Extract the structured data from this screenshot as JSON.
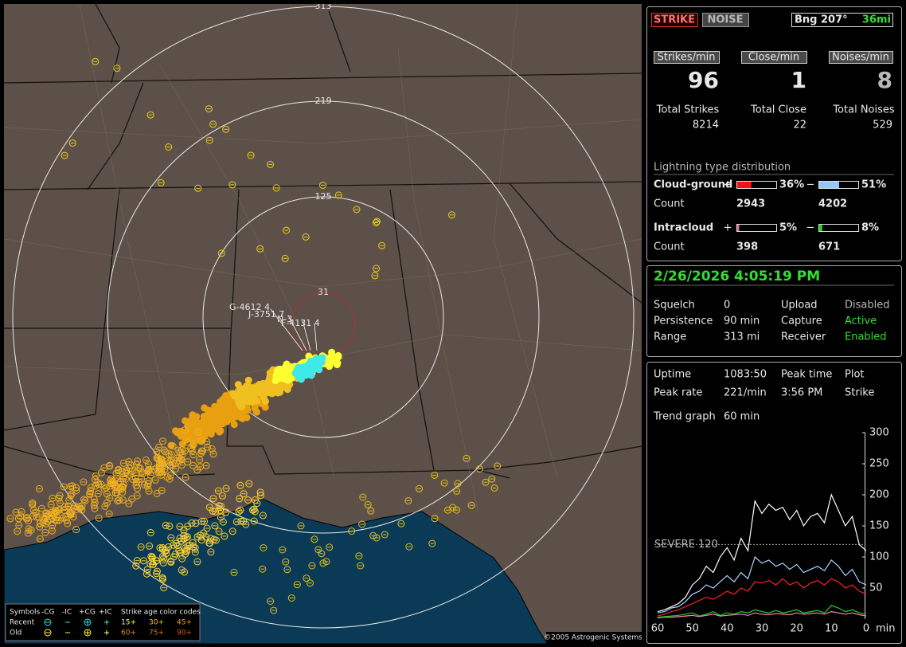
{
  "map": {
    "range_rings": [
      "313",
      "219",
      "125",
      "31"
    ],
    "strike_labels": [
      "G-4612 4",
      "J-3751 7",
      "N-3",
      "F-4131 4"
    ],
    "legend": {
      "symbols": "Symbols",
      "neg_cg": "-CG",
      "neg_ic": "-IC",
      "pos_cg": "+CG",
      "pos_ic": "+IC",
      "age_title": "Strike age color codes",
      "recent": "Recent",
      "old": "Old",
      "ages_recent": [
        "15+",
        "30+",
        "45+"
      ],
      "ages_old": [
        "60+",
        "75+",
        "90+"
      ]
    },
    "copyright": "©2005 Astrogenic Systems"
  },
  "header": {
    "strike_button": "STRIKE",
    "noise_button": "NOISE",
    "bearing": "Bng 207°",
    "distance": "36mi"
  },
  "rates": {
    "labels": [
      "Strikes/min",
      "Close/min",
      "Noises/min"
    ],
    "values": [
      96,
      1,
      8
    ],
    "total_labels": [
      "Total Strikes",
      "Total Close",
      "Total Noises"
    ],
    "totals": [
      8214,
      22,
      529
    ]
  },
  "distribution": {
    "title": "Lightning type distribution",
    "plus": "+",
    "minus": "−",
    "count_label": "Count",
    "rows": [
      {
        "name": "Cloud-ground",
        "pos": {
          "value": 36,
          "label": "36%"
        },
        "neg": {
          "value": 51,
          "label": "51%"
        },
        "pos_count": 2943,
        "neg_count": 4202
      },
      {
        "name": "Intracloud",
        "pos": {
          "value": 5,
          "label": "5%"
        },
        "neg": {
          "value": 8,
          "label": "8%"
        },
        "pos_count": 398,
        "neg_count": 671
      }
    ]
  },
  "status": {
    "datetime": "2/26/2026 4:05:19 PM",
    "rows": [
      [
        "Squelch",
        "0",
        "Upload",
        "Disabled"
      ],
      [
        "Persistence",
        "90 min",
        "Capture",
        "Active"
      ],
      [
        "Range",
        "313 mi",
        "Receiver",
        "Enabled"
      ]
    ]
  },
  "info": {
    "rows": [
      [
        "Uptime",
        "1083:50",
        "Peak time",
        "3:56 PM",
        "Plot"
      ],
      [
        "Peak rate",
        "221/min",
        "",
        "",
        "Strike"
      ]
    ],
    "trend_label": "Trend graph",
    "trend_window": "60 min"
  },
  "trend_graph": {
    "type": "line",
    "x": [
      60,
      58,
      56,
      54,
      52,
      50,
      48,
      46,
      44,
      42,
      40,
      38,
      36,
      34,
      32,
      30,
      28,
      26,
      24,
      22,
      20,
      18,
      16,
      14,
      12,
      10,
      8,
      6,
      4,
      2,
      0
    ],
    "xlim": [
      60,
      0
    ],
    "xticks": [
      60,
      50,
      40,
      30,
      20,
      10,
      0
    ],
    "x_unit": "min",
    "ylim": [
      0,
      300
    ],
    "yticks": [
      50,
      100,
      150,
      200,
      250,
      300
    ],
    "severe": {
      "value": 120,
      "label": "SEVERE 120"
    },
    "series": [
      {
        "color": "#ff80c0",
        "values": [
          2,
          3,
          3,
          4,
          5,
          6,
          4,
          6,
          8,
          5,
          6,
          7,
          8,
          6,
          10,
          8,
          7,
          9,
          8,
          7,
          10,
          8,
          9,
          10,
          8,
          12,
          10,
          8,
          10,
          7,
          5
        ]
      },
      {
        "color": "#20d020",
        "values": [
          3,
          4,
          5,
          6,
          8,
          10,
          5,
          8,
          12,
          6,
          10,
          8,
          12,
          10,
          15,
          12,
          10,
          14,
          10,
          12,
          15,
          10,
          12,
          14,
          10,
          22,
          18,
          12,
          15,
          10,
          8
        ]
      },
      {
        "color": "#ff2020",
        "values": [
          5,
          8,
          12,
          15,
          20,
          25,
          30,
          35,
          32,
          38,
          45,
          40,
          50,
          45,
          60,
          58,
          62,
          55,
          65,
          55,
          60,
          50,
          58,
          62,
          55,
          65,
          60,
          50,
          55,
          45,
          40
        ]
      },
      {
        "color": "#a8d4ff",
        "values": [
          10,
          12,
          18,
          20,
          28,
          40,
          45,
          55,
          50,
          60,
          70,
          60,
          75,
          65,
          100,
          90,
          95,
          85,
          90,
          80,
          88,
          75,
          80,
          85,
          78,
          95,
          85,
          70,
          80,
          60,
          55
        ]
      },
      {
        "color": "#ffffff",
        "values": [
          12,
          15,
          20,
          25,
          35,
          55,
          65,
          85,
          75,
          100,
          115,
          95,
          130,
          110,
          190,
          170,
          185,
          175,
          180,
          160,
          175,
          150,
          165,
          170,
          155,
          200,
          175,
          150,
          165,
          120,
          110
        ]
      }
    ]
  }
}
